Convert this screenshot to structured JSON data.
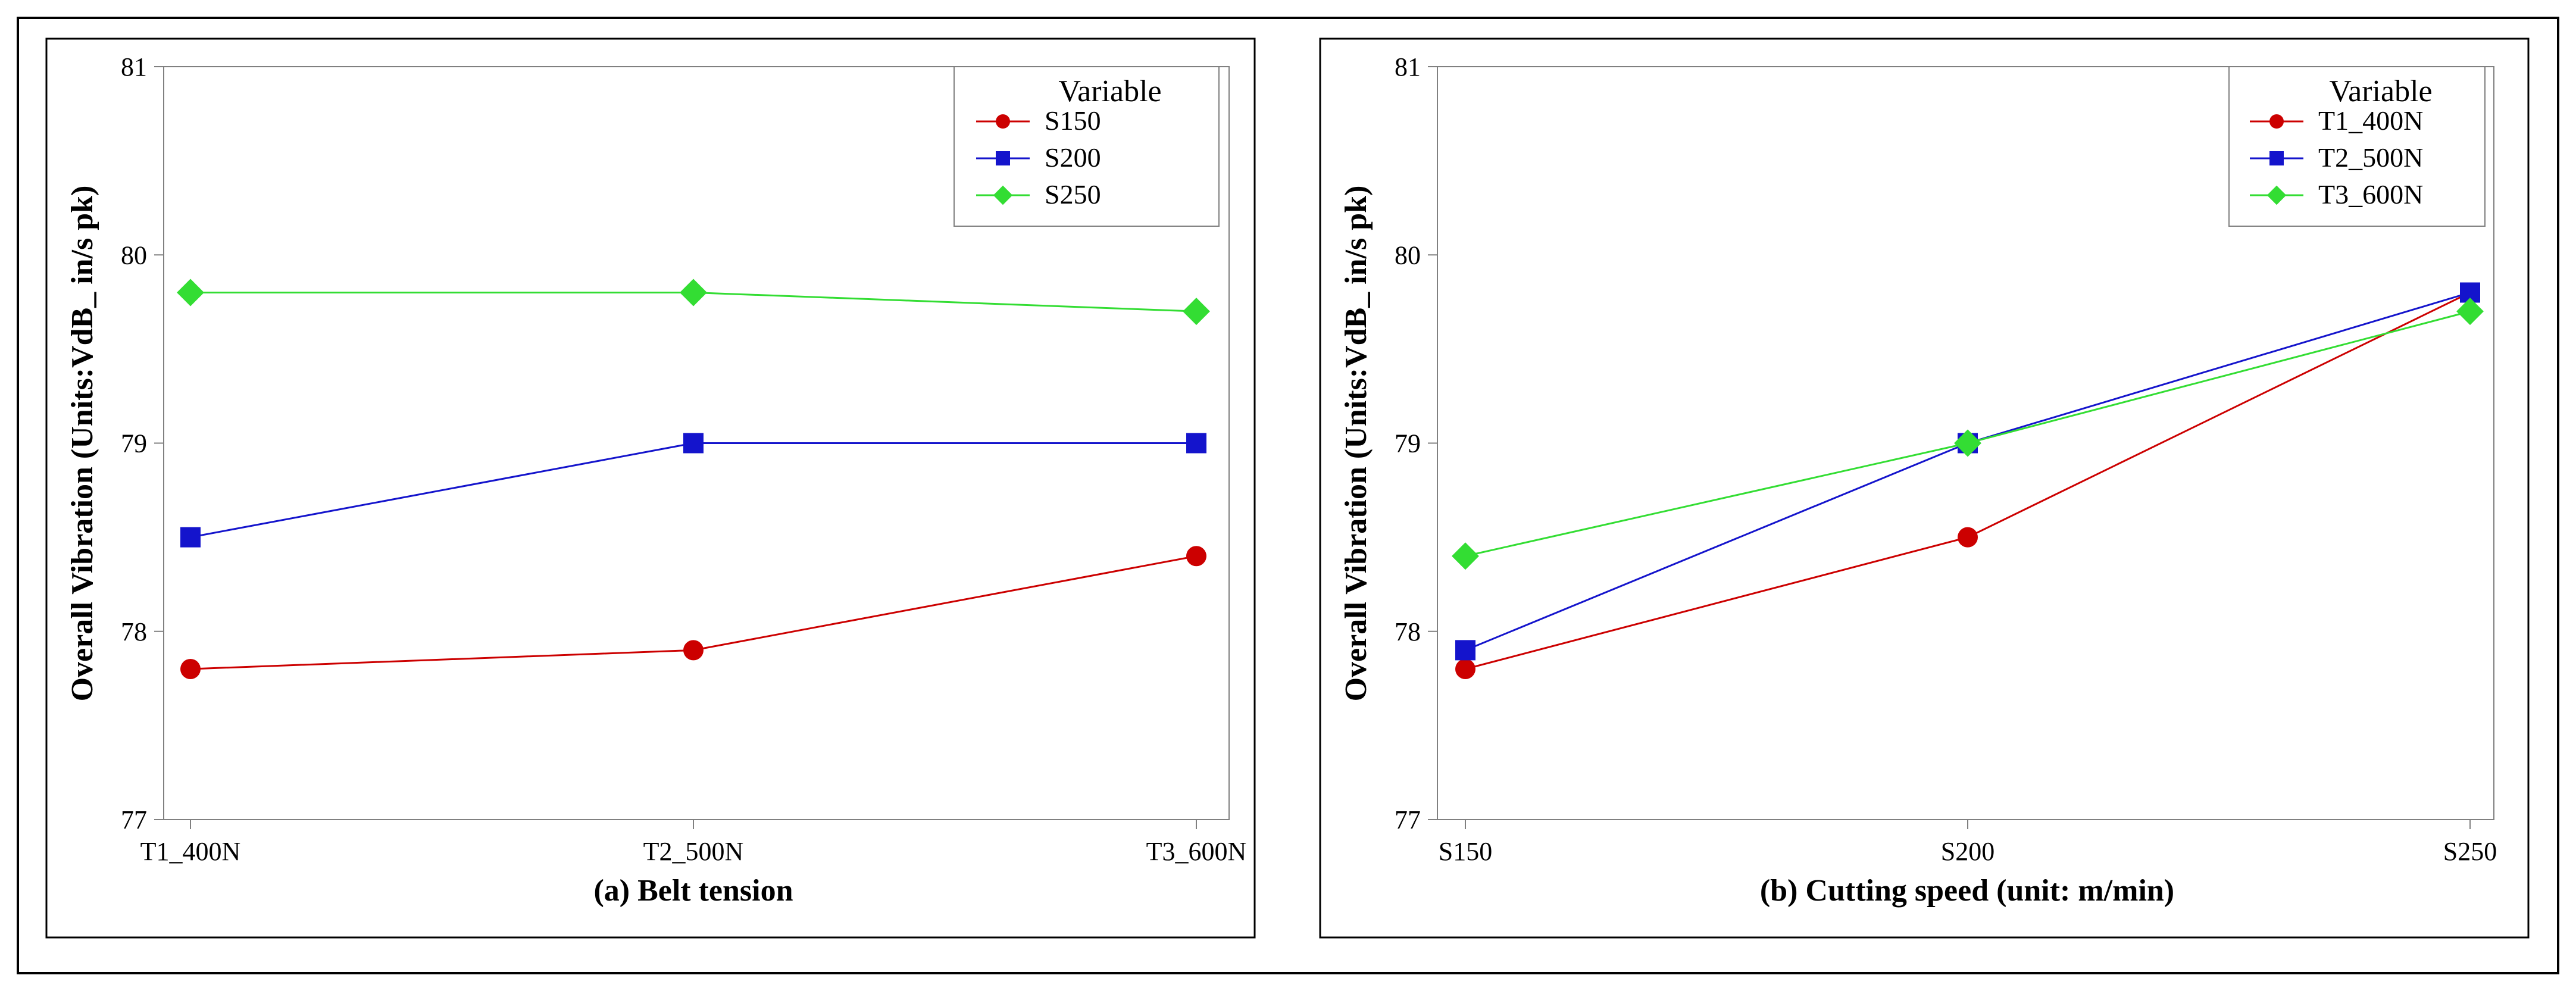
{
  "chart_data": [
    {
      "type": "line",
      "title": "(a) Belt tension",
      "xlabel": "(a) Belt tension",
      "ylabel": "Overall Vibration (Units:VdB_ in/s pk)",
      "categories": [
        "T1_400N",
        "T2_500N",
        "T3_600N"
      ],
      "ylim": [
        77,
        81
      ],
      "yticks": [
        "77",
        "78",
        "79",
        "80",
        "81"
      ],
      "legend": {
        "title": "Variable",
        "position": "top-right"
      },
      "series": [
        {
          "name": "S150",
          "values": [
            77.8,
            77.9,
            78.4
          ],
          "color": "#cc0000",
          "marker": "circle"
        },
        {
          "name": "S200",
          "values": [
            78.5,
            79.0,
            79.0
          ],
          "color": "#1414cc",
          "marker": "square"
        },
        {
          "name": "S250",
          "values": [
            79.8,
            79.8,
            79.7
          ],
          "color": "#33dd33",
          "marker": "diamond"
        }
      ]
    },
    {
      "type": "line",
      "title": "(b) Cutting speed (unit: m/min)",
      "xlabel": "(b) Cutting speed (unit: m/min)",
      "ylabel": "Overall Vibration (Units:VdB_ in/s pk)",
      "categories": [
        "S150",
        "S200",
        "S250"
      ],
      "ylim": [
        77,
        81
      ],
      "yticks": [
        "77",
        "78",
        "79",
        "80",
        "81"
      ],
      "legend": {
        "title": "Variable",
        "position": "top-right"
      },
      "series": [
        {
          "name": "T1_400N",
          "values": [
            77.8,
            78.5,
            79.8
          ],
          "color": "#cc0000",
          "marker": "circle"
        },
        {
          "name": "T2_500N",
          "values": [
            77.9,
            79.0,
            79.8
          ],
          "color": "#1414cc",
          "marker": "square"
        },
        {
          "name": "T3_600N",
          "values": [
            78.4,
            79.0,
            79.7
          ],
          "color": "#33dd33",
          "marker": "diamond"
        }
      ]
    }
  ]
}
